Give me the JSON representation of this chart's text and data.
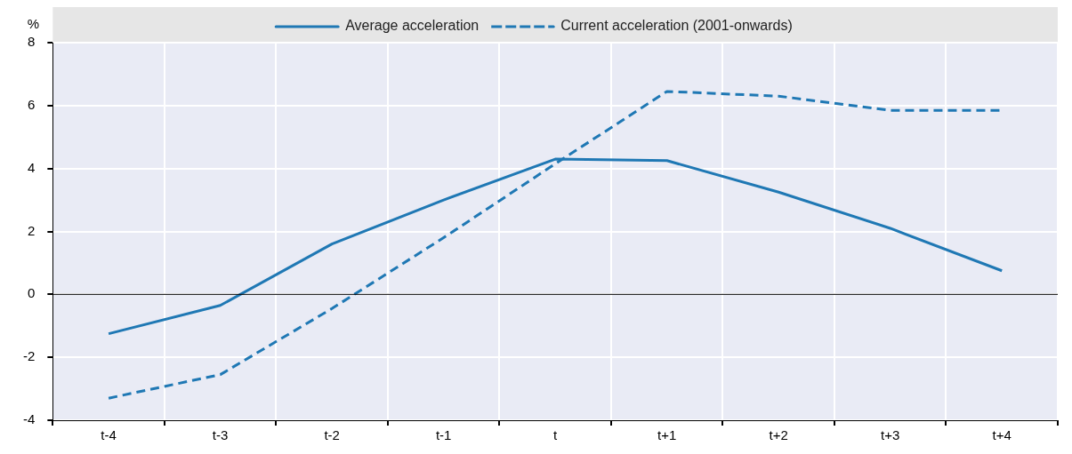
{
  "chart_data": {
    "type": "line",
    "ylabel": "%",
    "categories": [
      "t-4",
      "t-3",
      "t-2",
      "t-1",
      "t",
      "t+1",
      "t+2",
      "t+3",
      "t+4"
    ],
    "series": [
      {
        "name": "Average acceleration",
        "color": "#1f78b4",
        "line_style": "solid",
        "values": [
          -1.25,
          -0.35,
          1.6,
          3.0,
          4.3,
          4.25,
          3.25,
          2.1,
          0.75
        ]
      },
      {
        "name": "Current acceleration (2001-onwards)",
        "color": "#1f78b4",
        "line_style": "dashed",
        "values": [
          -3.3,
          -2.55,
          -0.45,
          1.8,
          4.15,
          6.45,
          6.3,
          5.85,
          5.85
        ]
      }
    ],
    "ylim": [
      -4,
      8
    ],
    "yticks": [
      -4,
      -2,
      0,
      2,
      4,
      6,
      8
    ],
    "grid": true,
    "legend": "top",
    "marker": "none",
    "ref_lines": [
      {
        "axis": "y",
        "value": 0,
        "color": "#000000"
      }
    ]
  }
}
